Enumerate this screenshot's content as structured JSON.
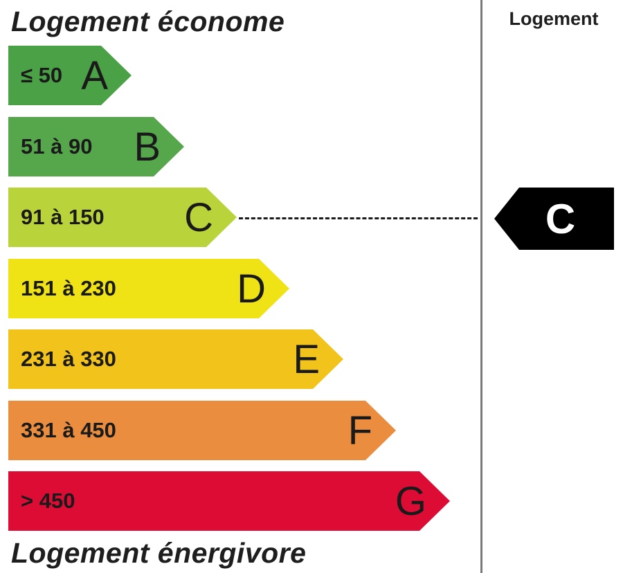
{
  "header": {
    "top_label": "Logement économe",
    "bottom_label": "Logement énergivore",
    "column_label": "Logement"
  },
  "bands": [
    {
      "letter": "A",
      "range": "≤ 50",
      "color": "#4aa146"
    },
    {
      "letter": "B",
      "range": "51 à 90",
      "color": "#56a74c"
    },
    {
      "letter": "C",
      "range": "91 à 150",
      "color": "#b9d43a"
    },
    {
      "letter": "D",
      "range": "151 à 230",
      "color": "#f0e315"
    },
    {
      "letter": "E",
      "range": "231 à 330",
      "color": "#f2c31b"
    },
    {
      "letter": "F",
      "range": "331 à 450",
      "color": "#eb8d3f"
    },
    {
      "letter": "G",
      "range": "> 450",
      "color": "#dd0c35"
    }
  ],
  "rating": {
    "letter": "C",
    "band_index": 2,
    "color": "#000000"
  }
}
